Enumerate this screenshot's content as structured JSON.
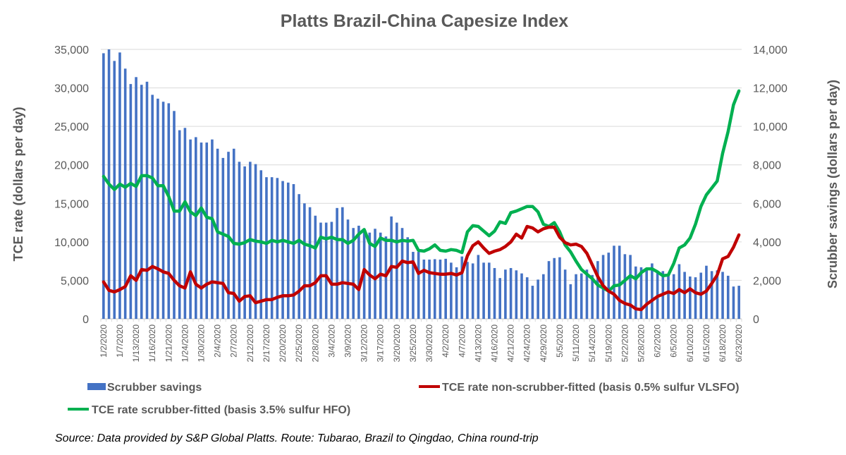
{
  "chart_data": {
    "type": "bar+line",
    "title": "Platts Brazil-China Capesize Index",
    "ylabel": "TCE rate (dollars per day)",
    "y2label": "Scrubber savings (dollars per day)",
    "ylim": [
      0,
      35000
    ],
    "y2lim": [
      0,
      14000
    ],
    "yticks": [
      "0",
      "5,000",
      "10,000",
      "15,000",
      "20,000",
      "25,000",
      "30,000",
      "35,000"
    ],
    "y2ticks": [
      "0",
      "2,000",
      "4,000",
      "6,000",
      "8,000",
      "10,000",
      "12,000",
      "14,000"
    ],
    "grid": true,
    "legend_position": "bottom",
    "x_labels": [
      "1/2/2020",
      "1/7/2020",
      "1/13/2020",
      "1/16/2020",
      "1/21/2020",
      "1/24/2020",
      "1/30/2020",
      "2/4/2020",
      "2/7/2020",
      "2/12/2020",
      "2/17/2020",
      "2/20/2020",
      "2/25/2020",
      "2/28/2020",
      "3/4/2020",
      "3/9/2020",
      "3/12/2020",
      "3/17/2020",
      "3/20/2020",
      "3/25/2020",
      "3/30/2020",
      "4/2/2020",
      "4/7/2020",
      "4/13/2020",
      "4/16/2020",
      "4/21/2020",
      "4/24/2020",
      "4/29/2020",
      "5/5/2020",
      "5/11/2020",
      "5/14/2020",
      "5/19/2020",
      "5/22/2020",
      "5/28/2020",
      "6/2/2020",
      "6/5/2020",
      "6/10/2020",
      "6/15/2020",
      "6/18/2020",
      "6/23/2020"
    ],
    "label_every": 3,
    "series": [
      {
        "name": "Scrubber savings",
        "type": "bar",
        "axis": "right",
        "color": "#4472C4",
        "values": [
          13800,
          14000,
          13400,
          13840,
          13000,
          12200,
          12560,
          12160,
          12320,
          11640,
          11440,
          11280,
          11200,
          10800,
          9800,
          9920,
          9320,
          9440,
          9160,
          9160,
          9320,
          8840,
          8360,
          8680,
          8840,
          8160,
          7920,
          8160,
          8040,
          7720,
          7360,
          7360,
          7320,
          7160,
          7080,
          7000,
          6480,
          6000,
          5800,
          5360,
          5000,
          5000,
          5040,
          5760,
          5800,
          5160,
          4720,
          4840,
          4640,
          4480,
          4680,
          4480,
          4280,
          5320,
          5000,
          4720,
          4240,
          3480,
          3480,
          3080,
          3080,
          3100,
          3080,
          3120,
          2920,
          2680,
          3240,
          2960,
          2880,
          3320,
          2920,
          2920,
          2640,
          2120,
          2560,
          2640,
          2520,
          2360,
          2160,
          1720,
          2040,
          2320,
          3000,
          3160,
          3200,
          2560,
          1800,
          2320,
          2360,
          2560,
          2280,
          3000,
          3320,
          3440,
          3800,
          3800,
          3360,
          3320,
          2720,
          2680,
          2560,
          2880,
          2440,
          2480,
          2280,
          2320,
          2840,
          2440,
          2200,
          2160,
          2400,
          2760,
          2480,
          2520,
          2440,
          2240,
          1680,
          1720
        ]
      },
      {
        "name": "TCE rate non-scrubber-fitted (basis 0.5% sulfur VLSFO)",
        "type": "line",
        "axis": "left",
        "color": "#C00000",
        "values": [
          4800,
          3700,
          3500,
          3800,
          4200,
          5600,
          5000,
          6400,
          6300,
          6800,
          6500,
          6100,
          5900,
          5000,
          4300,
          4000,
          6100,
          4500,
          4000,
          4500,
          4800,
          4700,
          4600,
          3400,
          3300,
          2300,
          2900,
          3000,
          2100,
          2300,
          2500,
          2500,
          2800,
          3000,
          3000,
          3100,
          3600,
          4300,
          4300,
          4700,
          5600,
          5600,
          4500,
          4500,
          4700,
          4600,
          4500,
          3800,
          6400,
          5700,
          5200,
          5800,
          5600,
          6800,
          6700,
          7500,
          7300,
          7400,
          5900,
          6300,
          6000,
          5900,
          5800,
          5800,
          5900,
          5700,
          6000,
          8200,
          9500,
          10000,
          9200,
          8500,
          8800,
          9000,
          9400,
          10000,
          11000,
          10500,
          12000,
          11800,
          11300,
          11700,
          11900,
          11900,
          10600,
          9900,
          9600,
          9700,
          9400,
          8500,
          7000,
          5500,
          4300,
          3600,
          3200,
          2400,
          2000,
          1800,
          1300,
          1200,
          1900,
          2400,
          2900,
          3200,
          3500,
          3300,
          3800,
          3400,
          3900,
          3400,
          3200,
          3600,
          4600,
          5700,
          7800,
          8100,
          9300,
          10900
        ]
      },
      {
        "name": "TCE rate scrubber-fitted (basis 3.5% sulfur HFO)",
        "type": "line",
        "axis": "left",
        "color": "#00B050",
        "values": [
          18500,
          17500,
          16800,
          17500,
          17100,
          17600,
          17200,
          18600,
          18600,
          18300,
          17300,
          17300,
          15900,
          14000,
          14000,
          15200,
          13900,
          13400,
          14400,
          13200,
          13000,
          11300,
          11000,
          10700,
          9800,
          9700,
          9900,
          10300,
          10100,
          10000,
          9800,
          10200,
          10000,
          10200,
          10000,
          9800,
          10200,
          9700,
          9500,
          9200,
          10600,
          10400,
          10600,
          10300,
          10300,
          9800,
          10200,
          11000,
          11600,
          9800,
          9400,
          10500,
          10200,
          10200,
          10000,
          10200,
          10100,
          10200,
          8900,
          8800,
          9100,
          9600,
          8900,
          8800,
          9000,
          8900,
          8600,
          11300,
          12100,
          12000,
          11400,
          10800,
          11400,
          12600,
          12400,
          13800,
          14000,
          14300,
          14600,
          14600,
          13900,
          12300,
          12000,
          12500,
          11300,
          9600,
          8700,
          7500,
          6400,
          5800,
          5200,
          4400,
          4000,
          3600,
          4300,
          4400,
          5000,
          5600,
          5200,
          6000,
          6500,
          6500,
          6100,
          5600,
          5700,
          7200,
          9200,
          9600,
          10500,
          12300,
          14600,
          16100,
          17000,
          17900,
          21500,
          24300,
          27800,
          29600
        ]
      }
    ]
  },
  "legend": {
    "items": [
      {
        "label": "Scrubber savings",
        "color": "#4472C4",
        "kind": "bar"
      },
      {
        "label": "TCE rate non-scrubber-fitted (basis 0.5% sulfur VLSFO)",
        "color": "#C00000",
        "kind": "line"
      },
      {
        "label": "TCE rate scrubber-fitted (basis 3.5% sulfur HFO)",
        "color": "#00B050",
        "kind": "line"
      }
    ]
  },
  "source": "Source: Data provided by S&P Global Platts. Route: Tubarao, Brazil to Qingdao, China round-trip"
}
